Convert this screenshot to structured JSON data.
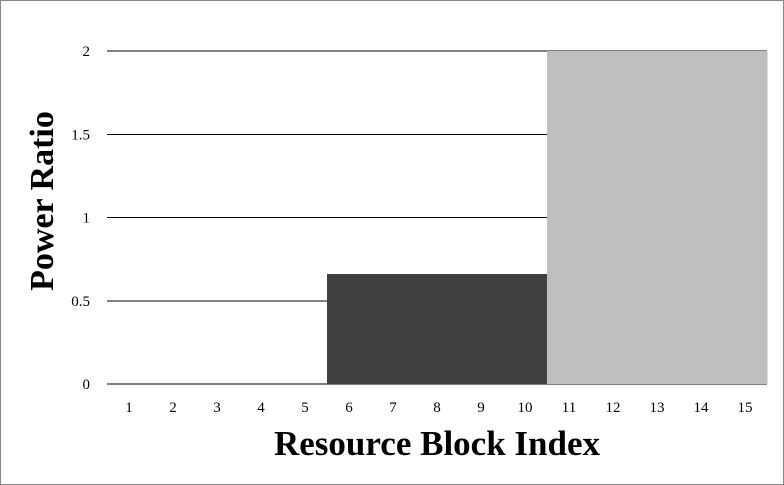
{
  "chart_data": {
    "type": "bar",
    "title": "",
    "xlabel": "Resource Block Index",
    "ylabel": "Power Ratio",
    "categories": [
      "1",
      "2",
      "3",
      "4",
      "5",
      "6",
      "7",
      "8",
      "9",
      "10",
      "11",
      "12",
      "13",
      "14",
      "15"
    ],
    "values": [
      0,
      0,
      0,
      0,
      0,
      0.66,
      0.66,
      0.66,
      0.66,
      0.66,
      2,
      2,
      2,
      2,
      2
    ],
    "bar_colors": [
      "#404040",
      "#404040",
      "#404040",
      "#404040",
      "#404040",
      "#404040",
      "#404040",
      "#404040",
      "#404040",
      "#404040",
      "#bfbfbf",
      "#bfbfbf",
      "#bfbfbf",
      "#bfbfbf",
      "#bfbfbf"
    ],
    "y_ticks": [
      "0",
      "0.5",
      "1",
      "1.5",
      "2"
    ],
    "y_tick_values": [
      0,
      0.5,
      1,
      1.5,
      2
    ],
    "ylim": [
      0,
      2
    ],
    "grid": true,
    "legend": "none"
  }
}
